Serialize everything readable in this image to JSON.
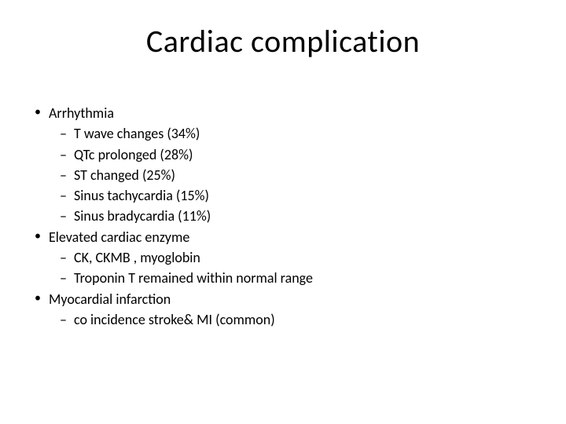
{
  "slide": {
    "title": "Cardiac complication",
    "title_fontsize": 40,
    "body_fontsize": 18,
    "background_color": "#ffffff",
    "text_color": "#000000",
    "bullets": [
      {
        "level": 1,
        "text": "Arrhythmia"
      },
      {
        "level": 2,
        "text": "T wave changes (34%)"
      },
      {
        "level": 2,
        "text": "QTc prolonged (28%)"
      },
      {
        "level": 2,
        "text": "ST changed (25%)"
      },
      {
        "level": 2,
        "text": "Sinus tachycardia (15%)"
      },
      {
        "level": 2,
        "text": "Sinus bradycardia (11%)"
      },
      {
        "level": 1,
        "text": "Elevated cardiac enzyme"
      },
      {
        "level": 2,
        "text": "CK, CKMB , myoglobin"
      },
      {
        "level": 2,
        "text": "Troponin T remained within normal range"
      },
      {
        "level": 1,
        "text": "Myocardial infarction"
      },
      {
        "level": 2,
        "text": "co incidence stroke& MI (common)"
      }
    ]
  }
}
